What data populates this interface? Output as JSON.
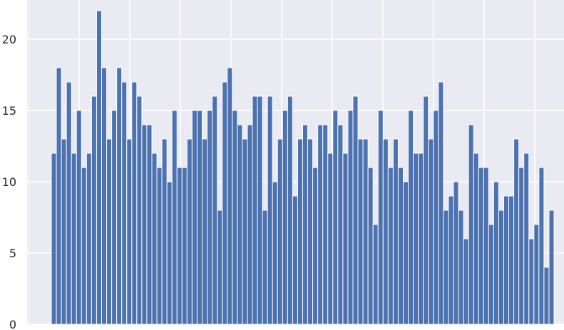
{
  "chart_data": {
    "type": "bar",
    "title": "",
    "xlabel": "",
    "ylabel": "",
    "ylim": [
      0,
      22
    ],
    "yticks": [
      0,
      5,
      10,
      15,
      20
    ],
    "grid": true,
    "colors": {
      "bar": "#4c72b0",
      "background": "#eaeaf2",
      "grid": "#ffffff",
      "page": "#ffffff"
    },
    "values": [
      12,
      18,
      13,
      17,
      12,
      15,
      11,
      12,
      16,
      22,
      18,
      13,
      15,
      18,
      17,
      13,
      17,
      16,
      14,
      14,
      12,
      11,
      13,
      10,
      15,
      11,
      11,
      13,
      15,
      15,
      13,
      15,
      16,
      8,
      17,
      18,
      15,
      14,
      13,
      14,
      16,
      16,
      8,
      16,
      10,
      13,
      15,
      16,
      9,
      13,
      14,
      13,
      11,
      14,
      14,
      12,
      15,
      14,
      12,
      15,
      16,
      13,
      13,
      11,
      7,
      15,
      13,
      11,
      13,
      11,
      10,
      15,
      12,
      12,
      16,
      13,
      15,
      17,
      8,
      9,
      10,
      8,
      6,
      14,
      12,
      11,
      11,
      7,
      10,
      8,
      9,
      9,
      13,
      11,
      12,
      6,
      7,
      11,
      4,
      8
    ]
  }
}
